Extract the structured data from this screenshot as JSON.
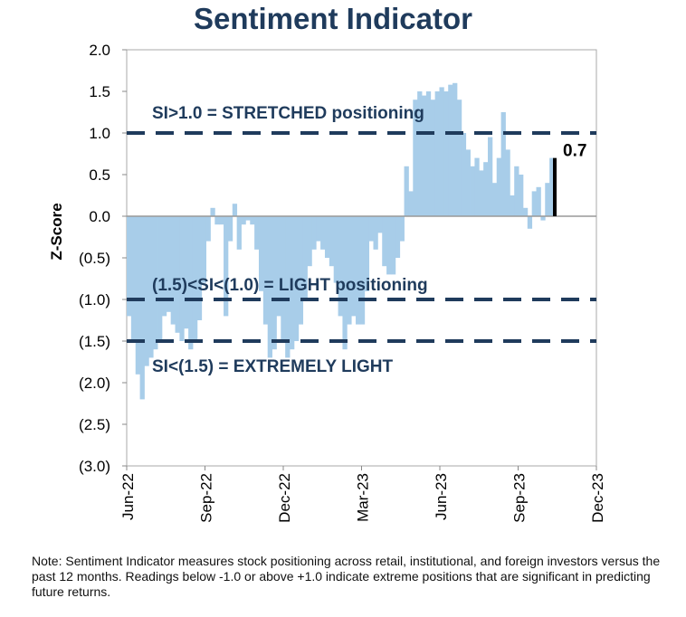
{
  "chart_data": {
    "type": "bar",
    "title": "Sentiment Indicator",
    "ylabel": "Z-Score",
    "xlabel": "",
    "ylim": [
      -3.0,
      2.0
    ],
    "y_ticks": [
      "2.0",
      "1.5",
      "1.0",
      "0.5",
      "0.0",
      "(0.5)",
      "(1.0)",
      "(1.5)",
      "(2.0)",
      "(2.5)",
      "(3.0)"
    ],
    "x_ticks": [
      "Jun-22",
      "Sep-22",
      "Dec-22",
      "Mar-23",
      "Jun-23",
      "Sep-23",
      "Dec-23"
    ],
    "x_range": [
      "2022-06",
      "2023-12"
    ],
    "bar_color": "#a8cde9",
    "latest": {
      "value": 0.7,
      "label": "0.7",
      "color": "#000000"
    },
    "reference_lines": [
      {
        "value": 1.0,
        "label": "SI>1.0 = STRETCHED positioning",
        "color": "#1f3b5c",
        "style": "dashed"
      },
      {
        "value": -1.0,
        "label": "(1.5)<SI<(1.0) = LIGHT positioning",
        "color": "#1f3b5c",
        "style": "dashed"
      },
      {
        "value": -1.5,
        "label": "SI<(1.5) = EXTREMELY LIGHT",
        "color": "#1f3b5c",
        "style": "dashed"
      }
    ],
    "values": [
      -1.2,
      -1.5,
      -1.9,
      -2.2,
      -1.8,
      -1.7,
      -1.6,
      -1.5,
      -1.2,
      -1.15,
      -1.3,
      -1.4,
      -1.5,
      -1.35,
      -1.6,
      -1.5,
      -1.25,
      -0.8,
      -0.3,
      0.1,
      -0.1,
      -0.1,
      -1.2,
      -0.3,
      0.15,
      -0.4,
      -0.1,
      -0.05,
      -0.1,
      -0.4,
      -0.9,
      -1.3,
      -1.7,
      -1.6,
      -1.2,
      -1.5,
      -1.7,
      -1.6,
      -1.5,
      -1.3,
      -1.0,
      -0.6,
      -0.4,
      -0.3,
      -0.4,
      -0.5,
      -0.6,
      -0.8,
      -1.2,
      -1.6,
      -1.3,
      -1.2,
      -1.3,
      -1.3,
      -0.9,
      -0.3,
      -0.4,
      -0.2,
      -0.6,
      -0.7,
      -0.7,
      -0.5,
      -0.3,
      0.6,
      0.3,
      1.4,
      1.5,
      1.45,
      1.5,
      1.4,
      1.5,
      1.55,
      1.5,
      1.58,
      1.6,
      1.4,
      1.0,
      0.8,
      0.6,
      0.7,
      0.55,
      0.65,
      0.95,
      0.4,
      0.7,
      1.25,
      0.8,
      0.25,
      0.6,
      0.5,
      0.1,
      -0.15,
      0.3,
      0.35,
      -0.05,
      0.4,
      0.7
    ]
  },
  "note": "Note: Sentiment Indicator measures stock positioning across retail, institutional, and foreign investors versus the past 12 months. Readings below -1.0 or above +1.0 indicate extreme positions that are significant in predicting future returns."
}
